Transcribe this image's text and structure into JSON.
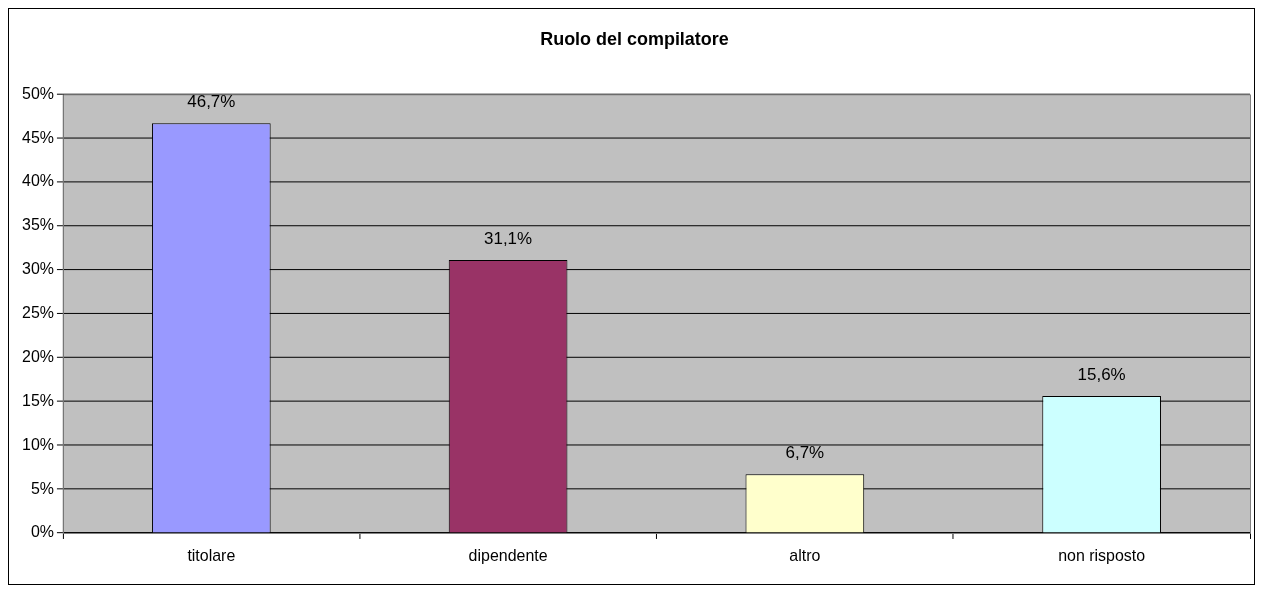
{
  "chart_data": {
    "type": "bar",
    "title": "Ruolo del compilatore",
    "categories": [
      "titolare",
      "dipendente",
      "altro",
      "non risposto"
    ],
    "values": [
      46.7,
      31.1,
      6.7,
      15.6
    ],
    "colors": [
      "#9999ff",
      "#993366",
      "#ffffcc",
      "#ccffff"
    ],
    "value_labels": [
      "46,7%",
      "31,1%",
      "6,7%",
      "15,6%"
    ],
    "ylim": [
      0,
      50
    ],
    "yticks": [
      {
        "value": 0,
        "label": "0%"
      },
      {
        "value": 5,
        "label": "5%"
      },
      {
        "value": 10,
        "label": "10%"
      },
      {
        "value": 15,
        "label": "15%"
      },
      {
        "value": 20,
        "label": "20%"
      },
      {
        "value": 25,
        "label": "25%"
      },
      {
        "value": 30,
        "label": "30%"
      },
      {
        "value": 35,
        "label": "35%"
      },
      {
        "value": 40,
        "label": "40%"
      },
      {
        "value": 45,
        "label": "45%"
      },
      {
        "value": 50,
        "label": "50%"
      }
    ],
    "grid": "y"
  }
}
